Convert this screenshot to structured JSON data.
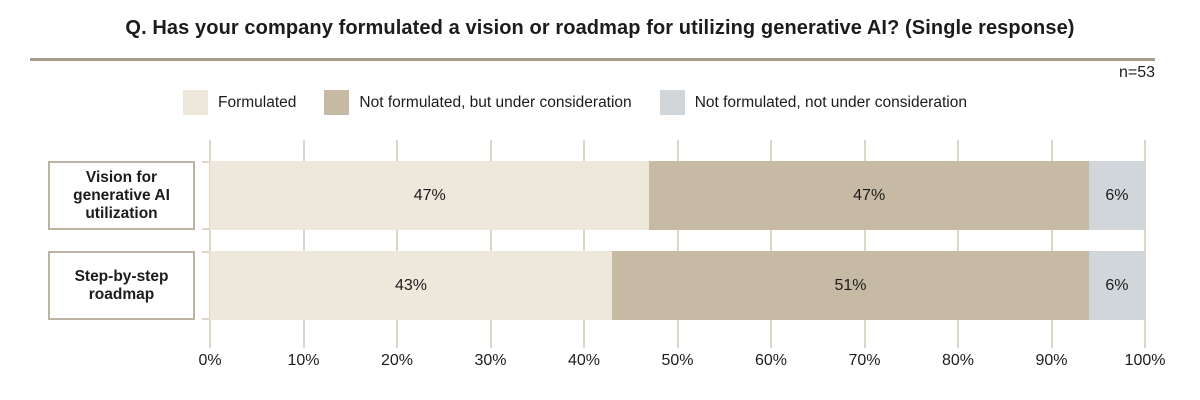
{
  "header": {
    "title": "Q. Has your company formulated a vision or roadmap for utilizing generative AI? (Single response)",
    "sample_label": "n=53"
  },
  "chart_data": {
    "type": "bar",
    "orientation": "horizontal",
    "stacked": true,
    "categories": [
      [
        "Vision for",
        "generative AI",
        "utilization"
      ],
      [
        "Step-by-step",
        "roadmap"
      ]
    ],
    "series": [
      {
        "name": "Formulated",
        "color": "#ede7dc",
        "values": [
          47,
          43
        ]
      },
      {
        "name": "Not formulated, but under consideration",
        "color": "#c7baa4",
        "values": [
          47,
          51
        ]
      },
      {
        "name": "Not formulated, not under consideration",
        "color": "#d0d6da",
        "values": [
          6,
          6
        ]
      }
    ],
    "value_suffix": "%",
    "xlim": [
      0,
      100
    ],
    "x_ticks": [
      "0%",
      "10%",
      "20%",
      "30%",
      "40%",
      "50%",
      "60%",
      "70%",
      "80%",
      "90%",
      "100%"
    ],
    "grid": true,
    "legend_position": "top"
  },
  "colors": {
    "rule": "#a79c8a",
    "grid": "#ded6c8",
    "category_box_border": "#bdb3a3",
    "text": "#1c1c1c"
  }
}
